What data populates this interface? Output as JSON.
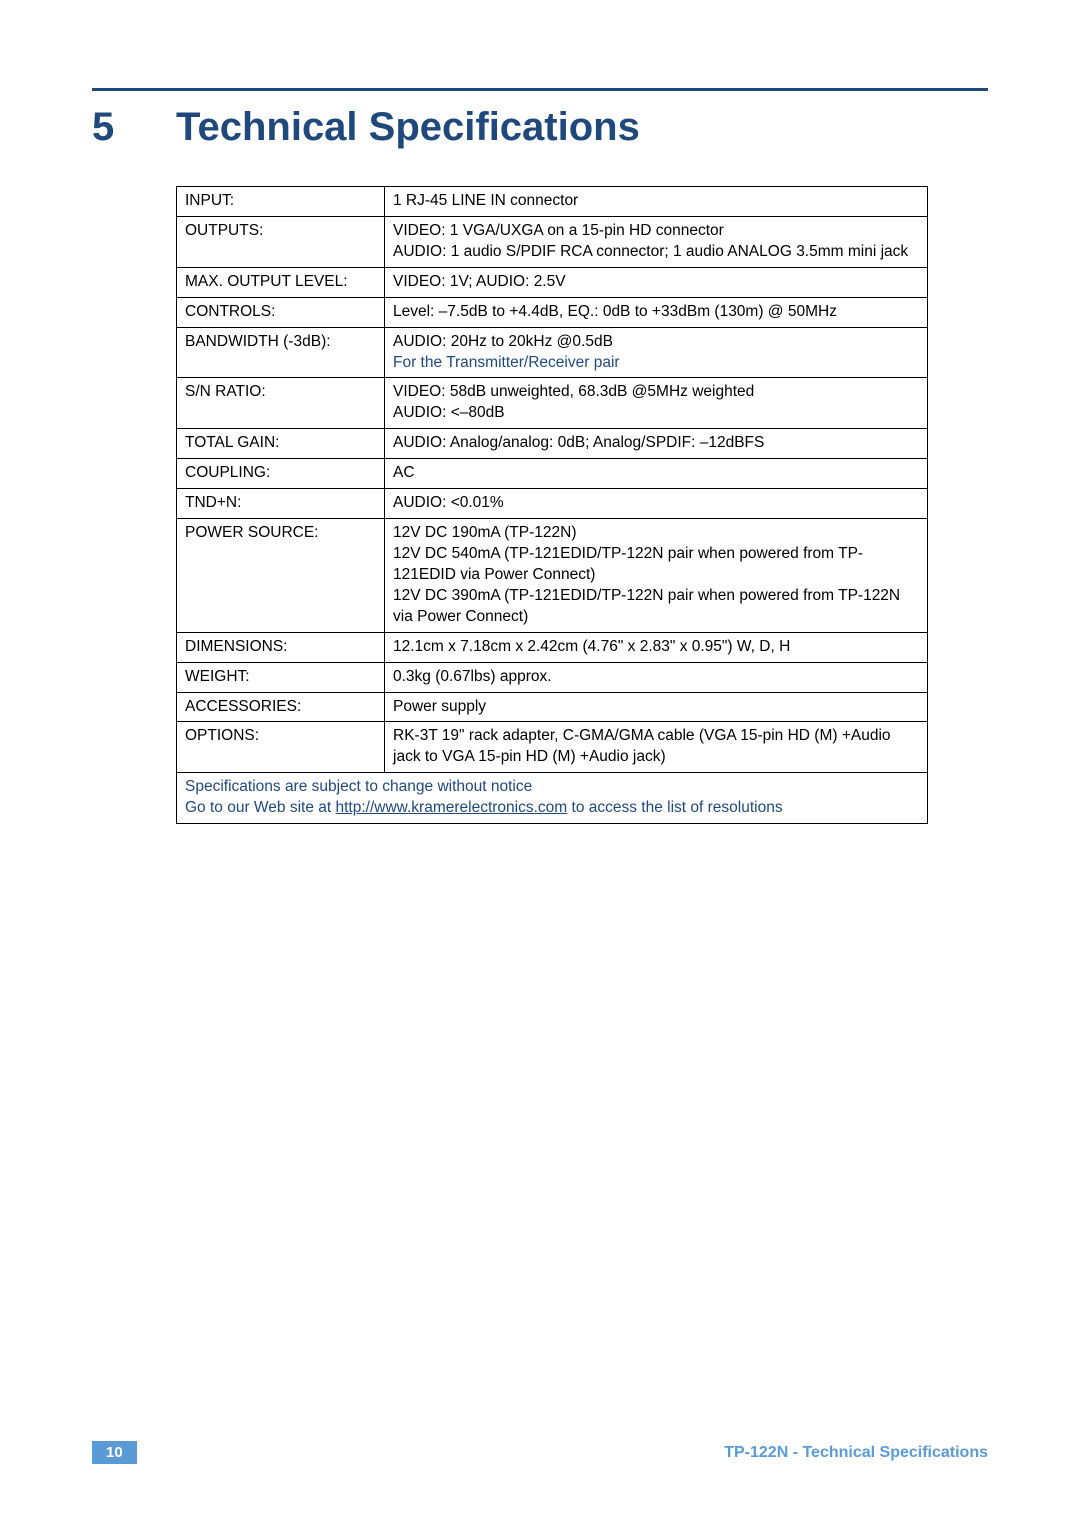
{
  "section": {
    "number": "5",
    "title": "Technical Specifications"
  },
  "rows": [
    {
      "label": "INPUT:",
      "value": "1 RJ-45 LINE IN connector"
    },
    {
      "label": "OUTPUTS:",
      "value": "VIDEO: 1 VGA/UXGA on a 15-pin HD connector\nAUDIO: 1 audio S/PDIF RCA connector; 1 audio ANALOG 3.5mm mini jack"
    },
    {
      "label": "MAX. OUTPUT LEVEL:",
      "value": "VIDEO: 1V; AUDIO: 2.5V"
    },
    {
      "label": "CONTROLS:",
      "value": "Level: –7.5dB to +4.4dB, EQ.: 0dB to +33dBm (130m) @ 50MHz"
    },
    {
      "label": "BANDWIDTH (-3dB):",
      "value": "AUDIO: 20Hz to 20kHz @0.5dB",
      "note": "For the Transmitter/Receiver pair"
    },
    {
      "label": "S/N RATIO:",
      "value": "VIDEO: 58dB unweighted, 68.3dB @5MHz weighted\nAUDIO: <–80dB"
    },
    {
      "label": "TOTAL GAIN:",
      "value": "AUDIO: Analog/analog: 0dB; Analog/SPDIF: –12dBFS"
    },
    {
      "label": "COUPLING:",
      "value": "AC"
    },
    {
      "label": "TND+N:",
      "value": "AUDIO: <0.01%"
    },
    {
      "label": "POWER SOURCE:",
      "value": "12V DC 190mA (TP-122N)\n12V DC 540mA (TP-121EDID/TP-122N pair when powered from TP-121EDID via Power Connect)\n12V DC 390mA (TP-121EDID/TP-122N pair when powered from TP-122N via Power Connect)"
    },
    {
      "label": "DIMENSIONS:",
      "value": "12.1cm x 7.18cm x 2.42cm (4.76\" x 2.83\" x 0.95\") W, D, H"
    },
    {
      "label": "WEIGHT:",
      "value": "0.3kg (0.67lbs) approx."
    },
    {
      "label": "ACCESSORIES:",
      "value": "Power supply"
    },
    {
      "label": "OPTIONS:",
      "value": "RK-3T 19\" rack adapter, C-GMA/GMA cable (VGA 15-pin HD (M) +Audio jack to VGA 15-pin HD (M)  +Audio jack)"
    }
  ],
  "footnote": {
    "line1": "Specifications are subject to change without notice",
    "line2_pre": "Go to our Web site at ",
    "link": "http://www.kramerelectronics.com",
    "line2_post": " to access the list of resolutions"
  },
  "footer": {
    "page": "10",
    "title": "TP-122N - Technical Specifications"
  },
  "colors": {
    "heading": "#1f497d",
    "rule": "#1f497d",
    "footer_accent": "#5b9bd5",
    "text": "#000000",
    "background": "#ffffff"
  }
}
